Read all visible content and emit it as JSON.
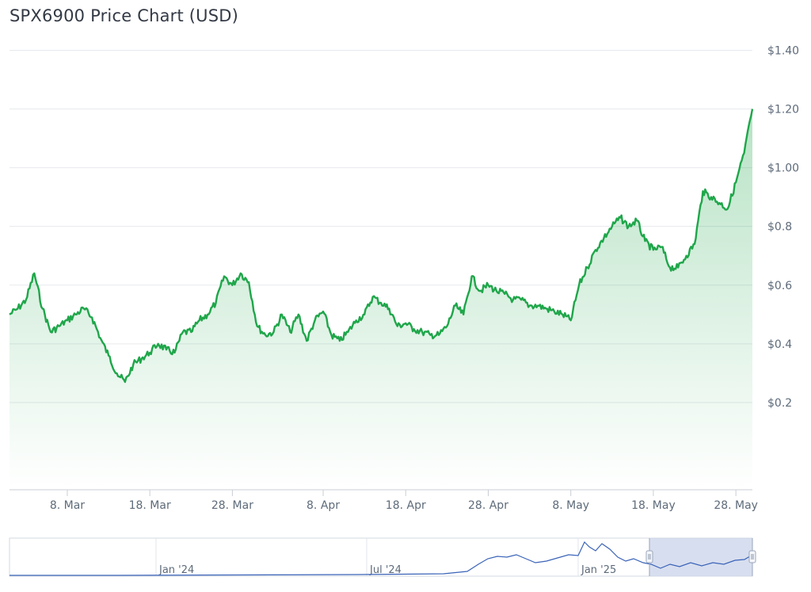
{
  "chart_data": {
    "type": "line",
    "title": "SPX6900 Price Chart (USD)",
    "xlabel": "",
    "ylabel": "",
    "y_unit": "USD",
    "ylim": [
      0.0,
      1.45
    ],
    "y_ticks": [
      {
        "value": 1.4,
        "label": "$1.40"
      },
      {
        "value": 1.2,
        "label": "$1.20"
      },
      {
        "value": 1.0,
        "label": "$1.00"
      },
      {
        "value": 0.8,
        "label": "$0.8"
      },
      {
        "value": 0.6,
        "label": "$0.6"
      },
      {
        "value": 0.4,
        "label": "$0.4"
      },
      {
        "value": 0.2,
        "label": "$0.2"
      }
    ],
    "x_ticks": [
      "8. Mar",
      "18. Mar",
      "28. Mar",
      "8. Apr",
      "18. Apr",
      "28. Apr",
      "8. May",
      "18. May",
      "28. May"
    ],
    "x_range": [
      "2025-03-01",
      "2025-05-30"
    ],
    "grid": true,
    "colors": {
      "line": "#1fa64a",
      "area_top": "#1fa64a",
      "grid": "#e6e9ee",
      "navigator_line": "#3a63b8",
      "navigator_mask": "#c9d3ea"
    },
    "series": [
      {
        "x": [
          "2025-03-01",
          "2025-03-02",
          "2025-03-03",
          "2025-03-04",
          "2025-03-05",
          "2025-03-06",
          "2025-03-07",
          "2025-03-08",
          "2025-03-09",
          "2025-03-10",
          "2025-03-11",
          "2025-03-12",
          "2025-03-13",
          "2025-03-14",
          "2025-03-15",
          "2025-03-16",
          "2025-03-17",
          "2025-03-18",
          "2025-03-19",
          "2025-03-20",
          "2025-03-21",
          "2025-03-22",
          "2025-03-23",
          "2025-03-24",
          "2025-03-25",
          "2025-03-26",
          "2025-03-27",
          "2025-03-28",
          "2025-03-29",
          "2025-03-30",
          "2025-03-31",
          "2025-04-01",
          "2025-04-02",
          "2025-04-03",
          "2025-04-04",
          "2025-04-05",
          "2025-04-06",
          "2025-04-07",
          "2025-04-08",
          "2025-04-09",
          "2025-04-10",
          "2025-04-11",
          "2025-04-12",
          "2025-04-13",
          "2025-04-14",
          "2025-04-15",
          "2025-04-16",
          "2025-04-17",
          "2025-04-18",
          "2025-04-19",
          "2025-04-20",
          "2025-04-21",
          "2025-04-22",
          "2025-04-23",
          "2025-04-24",
          "2025-04-25",
          "2025-04-26",
          "2025-04-27",
          "2025-04-28",
          "2025-04-29",
          "2025-04-30",
          "2025-05-01",
          "2025-05-02",
          "2025-05-03",
          "2025-05-04",
          "2025-05-05",
          "2025-05-06",
          "2025-05-07",
          "2025-05-08",
          "2025-05-09",
          "2025-05-10",
          "2025-05-11",
          "2025-05-12",
          "2025-05-13",
          "2025-05-14",
          "2025-05-15",
          "2025-05-16",
          "2025-05-17",
          "2025-05-18",
          "2025-05-19",
          "2025-05-20",
          "2025-05-21",
          "2025-05-22",
          "2025-05-23",
          "2025-05-24",
          "2025-05-25",
          "2025-05-26",
          "2025-05-27",
          "2025-05-28",
          "2025-05-29",
          "2025-05-30"
        ],
        "y": [
          0.5,
          0.52,
          0.55,
          0.64,
          0.52,
          0.44,
          0.46,
          0.48,
          0.5,
          0.52,
          0.49,
          0.42,
          0.36,
          0.3,
          0.27,
          0.33,
          0.35,
          0.37,
          0.4,
          0.38,
          0.37,
          0.44,
          0.44,
          0.48,
          0.5,
          0.54,
          0.63,
          0.6,
          0.64,
          0.61,
          0.46,
          0.43,
          0.44,
          0.5,
          0.44,
          0.5,
          0.41,
          0.48,
          0.51,
          0.43,
          0.41,
          0.44,
          0.48,
          0.5,
          0.56,
          0.54,
          0.52,
          0.46,
          0.47,
          0.45,
          0.44,
          0.43,
          0.43,
          0.46,
          0.53,
          0.5,
          0.63,
          0.58,
          0.6,
          0.58,
          0.57,
          0.55,
          0.55,
          0.53,
          0.53,
          0.52,
          0.51,
          0.5,
          0.48,
          0.6,
          0.66,
          0.72,
          0.76,
          0.8,
          0.83,
          0.8,
          0.82,
          0.75,
          0.72,
          0.73,
          0.66,
          0.66,
          0.7,
          0.74,
          0.92,
          0.9,
          0.88,
          0.86,
          0.95,
          1.05,
          1.2
        ]
      }
    ],
    "navigator": {
      "x_ticks": [
        "Jan '24",
        "Jul '24",
        "Jan '25"
      ],
      "selected_range": [
        "2025-03-01",
        "2025-05-30"
      ]
    }
  }
}
